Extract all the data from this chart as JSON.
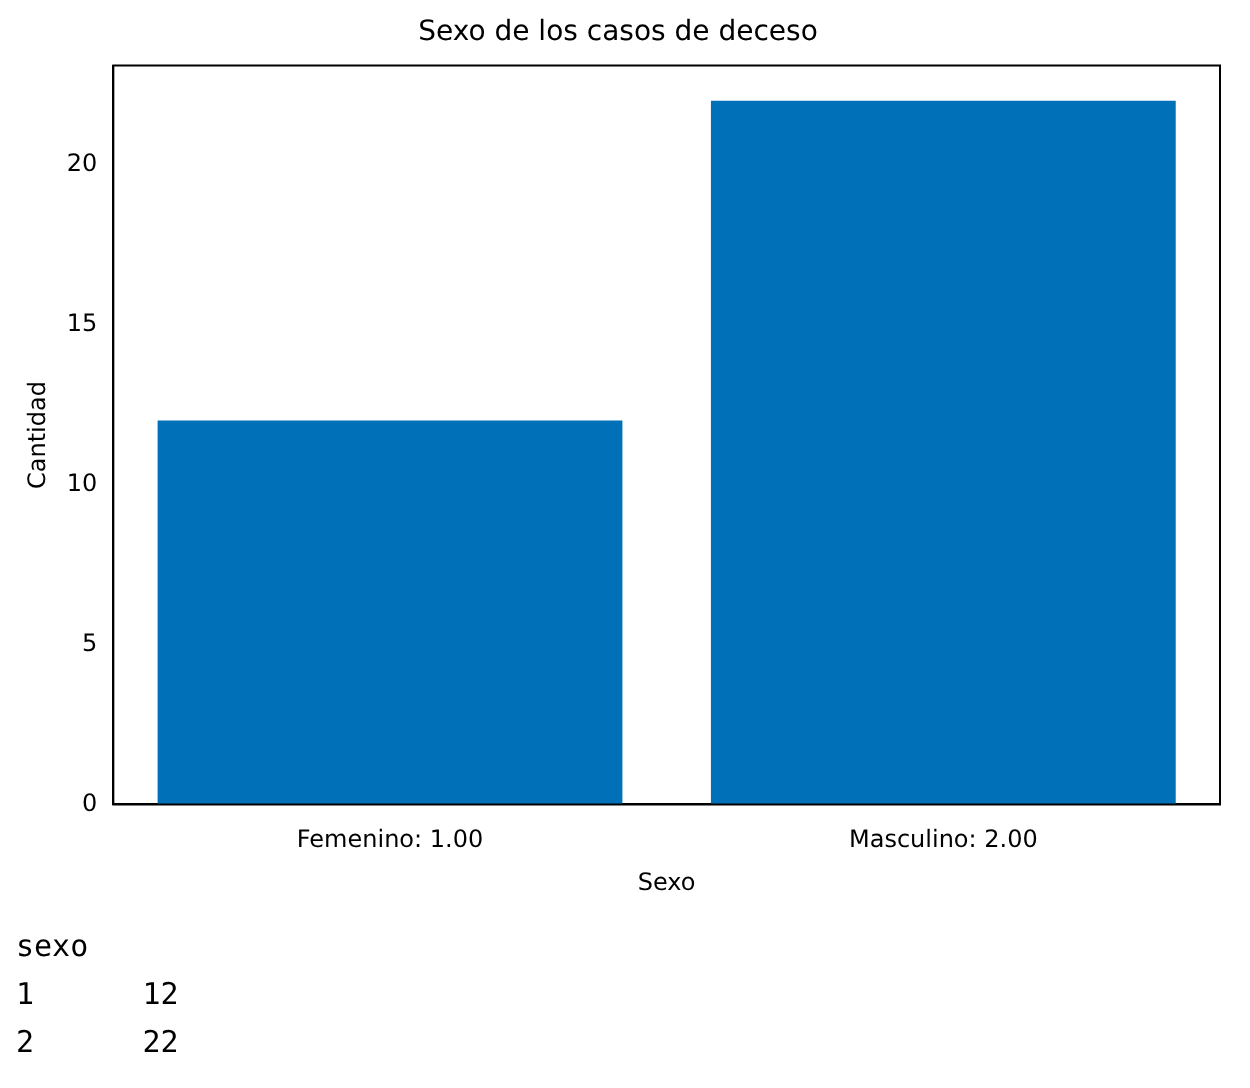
{
  "chart_data": {
    "type": "bar",
    "title": "Sexo de los casos de deceso",
    "xlabel": "Sexo",
    "ylabel": "Cantidad",
    "categories": [
      "Femenino: 1.00",
      "Masculino: 2.00"
    ],
    "values": [
      12,
      22
    ],
    "color": "#0070b8",
    "ylim": [
      0,
      23.1
    ],
    "yticks": [
      0,
      5,
      10,
      15,
      20
    ],
    "grid": false,
    "legend": false,
    "annotations": [
      "sexo",
      "1      12",
      "2      22"
    ]
  }
}
